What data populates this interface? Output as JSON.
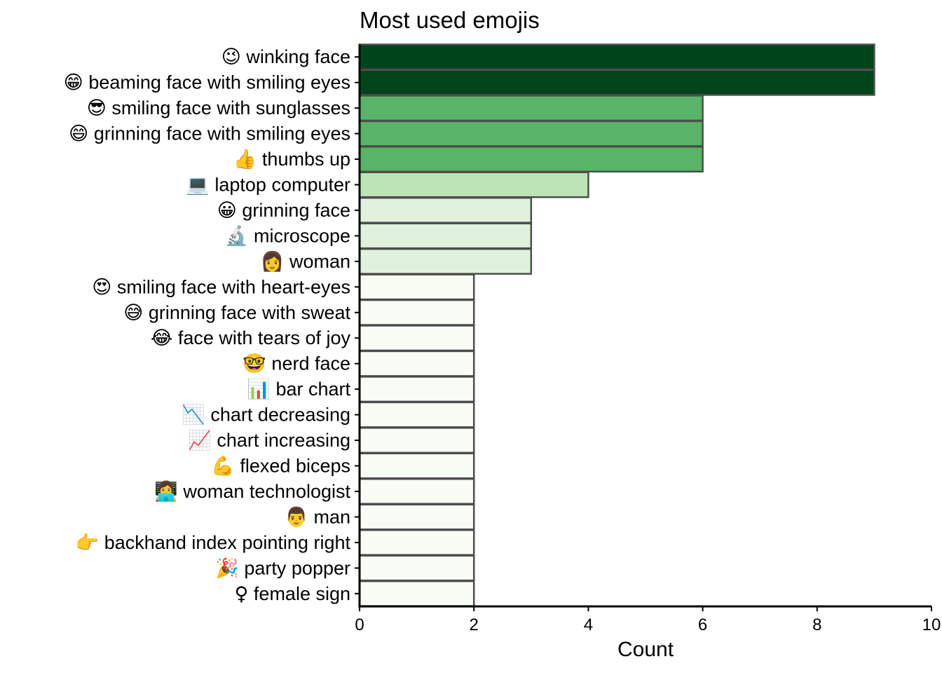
{
  "chart_data": {
    "type": "bar",
    "orientation": "horizontal",
    "title": "Most used emojis",
    "xlabel": "Count",
    "ylabel": "",
    "xlim": [
      0,
      10
    ],
    "x_ticks": [
      0,
      2,
      4,
      6,
      8,
      10
    ],
    "grid": false,
    "legend": "none",
    "categories": [
      {
        "emoji": "😉",
        "label": "winking face",
        "value": 9
      },
      {
        "emoji": "😁",
        "label": "beaming face with smiling eyes",
        "value": 9
      },
      {
        "emoji": "😎",
        "label": "smiling face with sunglasses",
        "value": 6
      },
      {
        "emoji": "😄",
        "label": "grinning face with smiling eyes",
        "value": 6
      },
      {
        "emoji": "👍",
        "label": "thumbs up",
        "value": 6
      },
      {
        "emoji": "💻",
        "label": "laptop computer",
        "value": 4
      },
      {
        "emoji": "😀",
        "label": "grinning face",
        "value": 3
      },
      {
        "emoji": "🔬",
        "label": "microscope",
        "value": 3
      },
      {
        "emoji": "👩",
        "label": "woman",
        "value": 3
      },
      {
        "emoji": "😍",
        "label": "smiling face with heart-eyes",
        "value": 2
      },
      {
        "emoji": "😅",
        "label": "grinning face with sweat",
        "value": 2
      },
      {
        "emoji": "😂",
        "label": "face with tears of joy",
        "value": 2
      },
      {
        "emoji": "🤓",
        "label": "nerd face",
        "value": 2
      },
      {
        "emoji": "📊",
        "label": "bar chart",
        "value": 2
      },
      {
        "emoji": "📉",
        "label": "chart decreasing",
        "value": 2
      },
      {
        "emoji": "📈",
        "label": "chart increasing",
        "value": 2
      },
      {
        "emoji": "💪",
        "label": "flexed biceps",
        "value": 2
      },
      {
        "emoji": "👩‍💻",
        "label": "woman technologist",
        "value": 2
      },
      {
        "emoji": "👨",
        "label": "man",
        "value": 2
      },
      {
        "emoji": "👉",
        "label": "backhand index pointing right",
        "value": 2
      },
      {
        "emoji": "🎉",
        "label": "party popper",
        "value": 2
      },
      {
        "emoji": "♀",
        "label": "female sign",
        "value": 2
      }
    ],
    "fill_scale": {
      "9": "#00441b",
      "6": "#5ab467",
      "4": "#bce4b5",
      "3": "#e0f2dc",
      "2": "#f7fcf5"
    },
    "bar_outline_color": "#4d4d4d",
    "axis_color": "#000000"
  }
}
